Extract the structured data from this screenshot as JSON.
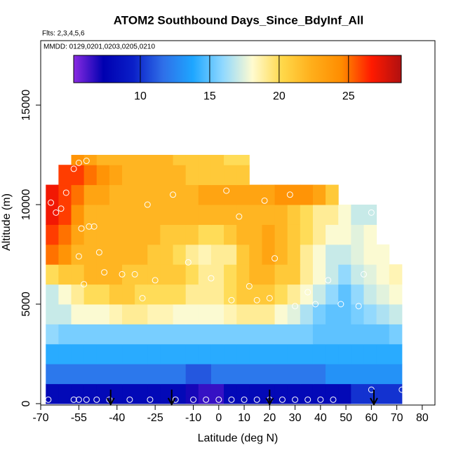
{
  "chart_data": {
    "type": "heatmap",
    "title": "ATOM2 Southbound Days_Since_BdyInf_All",
    "subtitle": "Flts: 2,3,4,5,6",
    "annotation": "MMDD: 0129,0201,0203,0205,0210",
    "x_label": "Latitude (deg N)",
    "y_label": "Altitude (m)",
    "xlim": [
      -70,
      85
    ],
    "ylim": [
      0,
      18240
    ],
    "xticks": [
      -70,
      -55,
      -40,
      -25,
      -10,
      0,
      10,
      20,
      30,
      40,
      50,
      60,
      70,
      80
    ],
    "yticks": [
      0,
      5000,
      10000,
      15000
    ],
    "x_bins": [
      -68,
      -63,
      -58,
      -53,
      -48,
      -43,
      -38,
      -33,
      -28,
      -23,
      -18,
      -13,
      -8,
      -3,
      2,
      7,
      12,
      17,
      22,
      27,
      32,
      37,
      42,
      47,
      52,
      57,
      62,
      67,
      72
    ],
    "y_bins": [
      0,
      1000,
      2000,
      3000,
      4000,
      5000,
      6000,
      7000,
      8000,
      9000,
      10000,
      11000,
      12000,
      12500
    ],
    "z": [
      [
        8,
        8,
        8,
        8,
        8,
        8,
        8,
        8,
        8,
        8,
        8,
        7,
        6.5,
        6.5,
        8,
        8,
        8,
        8,
        8,
        8,
        8,
        8,
        8,
        8,
        10,
        10,
        10,
        10
      ],
      [
        12,
        12,
        12,
        12,
        12,
        12,
        12,
        12,
        12,
        12,
        12,
        11,
        11,
        12,
        12,
        12,
        12,
        12,
        12,
        12,
        12,
        12,
        13,
        13,
        13,
        13,
        13,
        13
      ],
      [
        14,
        14,
        14,
        14,
        14,
        14,
        14,
        14,
        14,
        14,
        14,
        14,
        14,
        14,
        14,
        14,
        14,
        14,
        14,
        14,
        14,
        14,
        14,
        14,
        14,
        14,
        14,
        14
      ],
      [
        16,
        15.5,
        15.5,
        15.5,
        15.5,
        15.5,
        15.5,
        15.5,
        15.5,
        15.5,
        15.5,
        15.5,
        15.5,
        15.5,
        15.5,
        15.5,
        15.5,
        15.5,
        15.5,
        15.5,
        15.5,
        15,
        15,
        15,
        15,
        15,
        15,
        15.5
      ],
      [
        17,
        17,
        18,
        18,
        18,
        18.5,
        19,
        19,
        18.5,
        18.5,
        18,
        18,
        18,
        18,
        18.5,
        19,
        19,
        19,
        18,
        17.5,
        16.5,
        15.5,
        15,
        15,
        15.5,
        16,
        16.5,
        17
      ],
      [
        17,
        18,
        19,
        20,
        20,
        21,
        21,
        20,
        20,
        20,
        20,
        19,
        19,
        19,
        20,
        21,
        21,
        21,
        20,
        19,
        18,
        17,
        16,
        15,
        16,
        17,
        17.5,
        18
      ],
      [
        20,
        21,
        21,
        22,
        22,
        22,
        21,
        21,
        21,
        21,
        21,
        20,
        19,
        19,
        20,
        21,
        22,
        22,
        21,
        21,
        19,
        18,
        17,
        16,
        17,
        17.5,
        18,
        18.5
      ],
      [
        25,
        24,
        22,
        22,
        22,
        22,
        22,
        22,
        21,
        21,
        20,
        19,
        18.5,
        19,
        19,
        21,
        22,
        23,
        22,
        21,
        19,
        18,
        17,
        17,
        17.5,
        18,
        18,
        null
      ],
      [
        26,
        25,
        23,
        22,
        22,
        22,
        22,
        22,
        22,
        21,
        21,
        21,
        20,
        20,
        21,
        22,
        22,
        23,
        22,
        21,
        20,
        19,
        18,
        18,
        17.5,
        18,
        null,
        null
      ],
      [
        27,
        26,
        24,
        22,
        22,
        22,
        22,
        22,
        22,
        22,
        22,
        22,
        22,
        22,
        22,
        22,
        22,
        22,
        22,
        21,
        20,
        19,
        19,
        18,
        17,
        17,
        null,
        null
      ],
      [
        27,
        26,
        25,
        23,
        23,
        22,
        22,
        22,
        22,
        22,
        22,
        22,
        23,
        23,
        23,
        23,
        23,
        23,
        24,
        24,
        24,
        23,
        21,
        null,
        null,
        null,
        null,
        null
      ],
      [
        null,
        26,
        26,
        25,
        24,
        23,
        22,
        22,
        22,
        22,
        22,
        21,
        21,
        21,
        21,
        21,
        null,
        null,
        null,
        null,
        null,
        null,
        null,
        null,
        null,
        null,
        null,
        null
      ],
      [
        null,
        null,
        24,
        23,
        22,
        22,
        22,
        22,
        22,
        22,
        21,
        21,
        21,
        21,
        20,
        20,
        null,
        null,
        null,
        null,
        null,
        null,
        null,
        null,
        null,
        null,
        null,
        null
      ]
    ],
    "colorscale": [
      "#8a2be2",
      "#0000b0",
      "#0a1fc8",
      "#2f6fe8",
      "#1ea6ff",
      "#8fd8ff",
      "#fffbd0",
      "#ffd84a",
      "#ffae1a",
      "#ff8c00",
      "#ff1a00",
      "#b01010"
    ],
    "clim": [
      5.2,
      28.8
    ],
    "colorbar_ticks": [
      10,
      15,
      20,
      25
    ],
    "points": {
      "x": [
        -67,
        -57,
        -55,
        -52,
        -48,
        -43,
        -35,
        -27,
        -17,
        -10,
        -5,
        0,
        5,
        10,
        15,
        20,
        25,
        30,
        35,
        40,
        45,
        -66,
        -64,
        -62,
        -60,
        -57,
        -55,
        -52,
        -54,
        -51,
        -49,
        -47,
        -55,
        -53,
        -45,
        -38,
        -33,
        -28,
        -30,
        -25,
        -18,
        -12,
        -3,
        3,
        5,
        8,
        12,
        15,
        18,
        20,
        22,
        28,
        30,
        35,
        38,
        43,
        48,
        55,
        57,
        60,
        60,
        72
      ],
      "y": [
        200,
        200,
        200,
        200,
        200,
        200,
        200,
        200,
        200,
        200,
        200,
        200,
        200,
        200,
        200,
        200,
        200,
        200,
        200,
        200,
        200,
        10100,
        9600,
        9800,
        10600,
        11800,
        12100,
        12200,
        8800,
        8900,
        8900,
        7600,
        7400,
        6000,
        6600,
        6500,
        6500,
        10000,
        5300,
        6200,
        10500,
        7100,
        6300,
        10700,
        5200,
        9400,
        5900,
        5200,
        10200,
        5300,
        7300,
        10500,
        4900,
        5600,
        5000,
        6200,
        5000,
        4900,
        6500,
        9600,
        700,
        700
      ]
    },
    "arrows_x": [
      -42.5,
      -18.5,
      20,
      61
    ]
  }
}
